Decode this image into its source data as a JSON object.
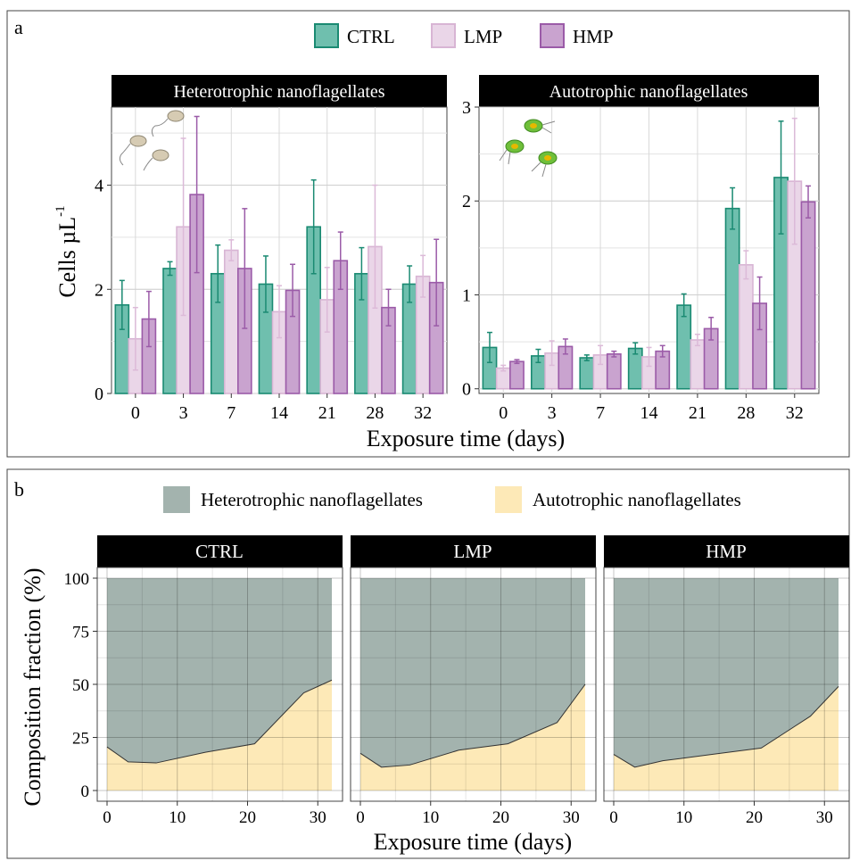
{
  "panel_a": {
    "letter": "a",
    "legend": [
      {
        "label": "CTRL",
        "color": "#6fbfae",
        "stroke": "#1a8a72"
      },
      {
        "label": "LMP",
        "color": "#ead6e8",
        "stroke": "#d8b5d4"
      },
      {
        "label": "HMP",
        "color": "#c9a3cf",
        "stroke": "#9b5ba8"
      }
    ],
    "ylabel": "Cells µL",
    "ylabel_sup": "-1",
    "xlabel": "Exposure time (days)",
    "icons": [
      "heterotrophic-cell-icon",
      "autotrophic-cell-icon"
    ]
  },
  "panel_b": {
    "letter": "b",
    "legend": [
      {
        "label": "Heterotrophic nanoflagellates",
        "color": "#a3b3ae"
      },
      {
        "label": "Autotrophic nanoflagellates",
        "color": "#fde9b7"
      }
    ],
    "ylabel": "Composition fraction (%)",
    "xlabel": "Exposure time (days)"
  },
  "chart_data": [
    {
      "type": "bar",
      "title": "Heterotrophic nanoflagellates",
      "categories": [
        "0",
        "3",
        "7",
        "14",
        "21",
        "28",
        "32"
      ],
      "ylim": [
        0,
        5.5
      ],
      "yticks": [
        0,
        2,
        4
      ],
      "grid": true,
      "series": [
        {
          "name": "CTRL",
          "values": [
            1.7,
            2.4,
            2.3,
            2.1,
            3.2,
            2.3,
            2.1
          ],
          "errors": [
            0.47,
            0.13,
            0.55,
            0.54,
            0.9,
            0.5,
            0.35
          ]
        },
        {
          "name": "LMP",
          "values": [
            1.05,
            3.2,
            2.75,
            1.57,
            1.8,
            2.82,
            2.25
          ],
          "errors": [
            0.6,
            1.7,
            0.2,
            0.5,
            0.62,
            1.18,
            0.4
          ]
        },
        {
          "name": "HMP",
          "values": [
            1.43,
            3.82,
            2.4,
            1.98,
            2.55,
            1.65,
            2.13
          ],
          "errors": [
            0.53,
            1.5,
            1.15,
            0.5,
            0.55,
            0.35,
            0.83
          ]
        }
      ]
    },
    {
      "type": "bar",
      "title": "Autotrophic nanoflagellates",
      "categories": [
        "0",
        "3",
        "7",
        "14",
        "21",
        "28",
        "32"
      ],
      "ylim": [
        -0.05,
        3.0
      ],
      "yticks": [
        0,
        1,
        2,
        3
      ],
      "grid": true,
      "series": [
        {
          "name": "CTRL",
          "values": [
            0.44,
            0.35,
            0.33,
            0.43,
            0.89,
            1.92,
            2.25
          ],
          "errors": [
            0.16,
            0.07,
            0.03,
            0.06,
            0.12,
            0.22,
            0.6
          ]
        },
        {
          "name": "LMP",
          "values": [
            0.22,
            0.38,
            0.36,
            0.34,
            0.52,
            1.32,
            2.21
          ],
          "errors": [
            0.03,
            0.13,
            0.1,
            0.1,
            0.06,
            0.15,
            0.67
          ]
        },
        {
          "name": "HMP",
          "values": [
            0.29,
            0.45,
            0.37,
            0.4,
            0.64,
            0.91,
            1.99
          ],
          "errors": [
            0.02,
            0.08,
            0.03,
            0.06,
            0.12,
            0.28,
            0.17
          ]
        }
      ]
    },
    {
      "type": "area",
      "title": "CTRL",
      "x": [
        0,
        3,
        7,
        14,
        21,
        28,
        32
      ],
      "xlim": [
        0,
        32
      ],
      "xticks": [
        0,
        10,
        20,
        30
      ],
      "ylim": [
        0,
        100
      ],
      "yticks": [
        0,
        25,
        50,
        75,
        100
      ],
      "series": [
        {
          "name": "Autotrophic nanoflagellates",
          "values": [
            20.5,
            13.5,
            13,
            18,
            22,
            46,
            52
          ]
        },
        {
          "name": "Heterotrophic nanoflagellates",
          "values": [
            79.5,
            86.5,
            87,
            82,
            78,
            54,
            48
          ]
        }
      ]
    },
    {
      "type": "area",
      "title": "LMP",
      "x": [
        0,
        3,
        7,
        14,
        21,
        28,
        32
      ],
      "xlim": [
        0,
        32
      ],
      "xticks": [
        0,
        10,
        20,
        30
      ],
      "ylim": [
        0,
        100
      ],
      "yticks": [
        0,
        25,
        50,
        75,
        100
      ],
      "series": [
        {
          "name": "Autotrophic nanoflagellates",
          "values": [
            17.5,
            11,
            12,
            19,
            22,
            32,
            50
          ]
        },
        {
          "name": "Heterotrophic nanoflagellates",
          "values": [
            82.5,
            89,
            88,
            81,
            78,
            68,
            50
          ]
        }
      ]
    },
    {
      "type": "area",
      "title": "HMP",
      "x": [
        0,
        3,
        7,
        14,
        21,
        28,
        32
      ],
      "xlim": [
        0,
        32
      ],
      "xticks": [
        0,
        10,
        20,
        30
      ],
      "ylim": [
        0,
        100
      ],
      "yticks": [
        0,
        25,
        50,
        75,
        100
      ],
      "series": [
        {
          "name": "Autotrophic nanoflagellates",
          "values": [
            17,
            11,
            14,
            17,
            20,
            35,
            49
          ]
        },
        {
          "name": "Heterotrophic nanoflagellates",
          "values": [
            83,
            89,
            86,
            83,
            80,
            65,
            51
          ]
        }
      ]
    }
  ]
}
